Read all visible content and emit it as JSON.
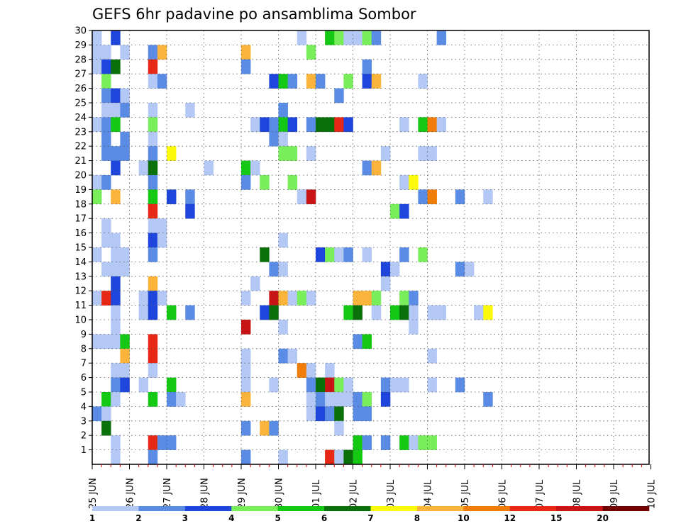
{
  "chart_data": {
    "type": "heatmap",
    "title": "GEFS 6hr padavine po ansamblima Sombor",
    "xlabel": "",
    "ylabel": "",
    "x_ticks": [
      "25 JUN",
      "26 JUN",
      "27 JUN",
      "28 JUN",
      "29 JUN",
      "30 JUN",
      "01 JUL",
      "02 JUL",
      "03 JUL",
      "04 JUL",
      "05 JUL",
      "06 JUL",
      "07 JUL",
      "08 JUL",
      "09 JUL",
      "10 JUL"
    ],
    "y_ticks": [
      "1",
      "2",
      "3",
      "4",
      "5",
      "6",
      "7",
      "8",
      "9",
      "10",
      "11",
      "12",
      "13",
      "14",
      "15",
      "16",
      "17",
      "18",
      "19",
      "20",
      "21",
      "22",
      "23",
      "24",
      "25",
      "26",
      "27",
      "28",
      "29",
      "30"
    ],
    "x_unit": "6-hour step since 25 JUN 00Z",
    "ylim": [
      0,
      30
    ],
    "grid": true,
    "colorbar": {
      "labels": [
        "1",
        "2",
        "3",
        "4",
        "5",
        "6",
        "7",
        "8",
        "10",
        "12",
        "15",
        "20"
      ],
      "colors": [
        "#b4c8f5",
        "#5a8ce6",
        "#1e46dc",
        "#78ee5a",
        "#14c814",
        "#0a700a",
        "#fafa0a",
        "#fab43c",
        "#f07d0a",
        "#e62814",
        "#c81414",
        "#730000"
      ]
    },
    "cells": [
      [
        0,
        30,
        1
      ],
      [
        2,
        30,
        3
      ],
      [
        22,
        30,
        1
      ],
      [
        25,
        30,
        5
      ],
      [
        26,
        30,
        4
      ],
      [
        27,
        30,
        1
      ],
      [
        28,
        30,
        1
      ],
      [
        29,
        30,
        4
      ],
      [
        30,
        30,
        2
      ],
      [
        37,
        30,
        2
      ],
      [
        0,
        29,
        1
      ],
      [
        1,
        29,
        1
      ],
      [
        3,
        29,
        1
      ],
      [
        6,
        29,
        2
      ],
      [
        7,
        29,
        9
      ],
      [
        16,
        29,
        9
      ],
      [
        23,
        29,
        4
      ],
      [
        0,
        28,
        1
      ],
      [
        1,
        28,
        3
      ],
      [
        2,
        28,
        6
      ],
      [
        6,
        28,
        12
      ],
      [
        16,
        28,
        2
      ],
      [
        29,
        28,
        2
      ],
      [
        1,
        27,
        4
      ],
      [
        6,
        27,
        1
      ],
      [
        7,
        27,
        2
      ],
      [
        19,
        27,
        3
      ],
      [
        20,
        27,
        5
      ],
      [
        21,
        27,
        2
      ],
      [
        23,
        27,
        9
      ],
      [
        24,
        27,
        2
      ],
      [
        27,
        27,
        4
      ],
      [
        29,
        27,
        3
      ],
      [
        30,
        27,
        9
      ],
      [
        35,
        27,
        1
      ],
      [
        1,
        26,
        2
      ],
      [
        2,
        26,
        3
      ],
      [
        3,
        26,
        1
      ],
      [
        26,
        26,
        2
      ],
      [
        1,
        25,
        1
      ],
      [
        2,
        25,
        1
      ],
      [
        3,
        25,
        2
      ],
      [
        6,
        25,
        1
      ],
      [
        10,
        25,
        1
      ],
      [
        20,
        25,
        2
      ],
      [
        0,
        24,
        1
      ],
      [
        1,
        24,
        2
      ],
      [
        2,
        24,
        5
      ],
      [
        6,
        24,
        4
      ],
      [
        17,
        24,
        1
      ],
      [
        18,
        24,
        3
      ],
      [
        19,
        24,
        2
      ],
      [
        20,
        24,
        5
      ],
      [
        21,
        24,
        3
      ],
      [
        23,
        24,
        2
      ],
      [
        24,
        24,
        6
      ],
      [
        25,
        24,
        6
      ],
      [
        26,
        24,
        12
      ],
      [
        27,
        24,
        3
      ],
      [
        33,
        24,
        1
      ],
      [
        35,
        24,
        5
      ],
      [
        36,
        24,
        10
      ],
      [
        37,
        24,
        1
      ],
      [
        1,
        23,
        2
      ],
      [
        3,
        23,
        2
      ],
      [
        6,
        23,
        1
      ],
      [
        19,
        23,
        2
      ],
      [
        20,
        23,
        1
      ],
      [
        1,
        22,
        2
      ],
      [
        2,
        22,
        2
      ],
      [
        3,
        22,
        2
      ],
      [
        6,
        22,
        2
      ],
      [
        8,
        22,
        7
      ],
      [
        20,
        22,
        4
      ],
      [
        21,
        22,
        4
      ],
      [
        23,
        22,
        1
      ],
      [
        31,
        22,
        1
      ],
      [
        35,
        22,
        1
      ],
      [
        36,
        22,
        1
      ],
      [
        2,
        21,
        3
      ],
      [
        5,
        21,
        1
      ],
      [
        6,
        21,
        6
      ],
      [
        12,
        21,
        1
      ],
      [
        16,
        21,
        5
      ],
      [
        17,
        21,
        1
      ],
      [
        29,
        21,
        2
      ],
      [
        30,
        21,
        9
      ],
      [
        0,
        20,
        1
      ],
      [
        1,
        20,
        2
      ],
      [
        6,
        20,
        2
      ],
      [
        16,
        20,
        2
      ],
      [
        18,
        20,
        4
      ],
      [
        21,
        20,
        4
      ],
      [
        33,
        20,
        1
      ],
      [
        34,
        20,
        7
      ],
      [
        0,
        19,
        4
      ],
      [
        2,
        19,
        9
      ],
      [
        6,
        19,
        5
      ],
      [
        8,
        19,
        3
      ],
      [
        10,
        19,
        2
      ],
      [
        22,
        19,
        1
      ],
      [
        23,
        19,
        15
      ],
      [
        35,
        19,
        2
      ],
      [
        36,
        19,
        10
      ],
      [
        39,
        19,
        2
      ],
      [
        42,
        19,
        1
      ],
      [
        6,
        18,
        12
      ],
      [
        10,
        18,
        3
      ],
      [
        32,
        18,
        4
      ],
      [
        33,
        18,
        3
      ],
      [
        1,
        17,
        1
      ],
      [
        6,
        17,
        1
      ],
      [
        7,
        17,
        1
      ],
      [
        1,
        16,
        1
      ],
      [
        2,
        16,
        1
      ],
      [
        6,
        16,
        3
      ],
      [
        7,
        16,
        1
      ],
      [
        20,
        16,
        1
      ],
      [
        0,
        15,
        1
      ],
      [
        2,
        15,
        1
      ],
      [
        3,
        15,
        1
      ],
      [
        6,
        15,
        2
      ],
      [
        18,
        15,
        6
      ],
      [
        24,
        15,
        3
      ],
      [
        25,
        15,
        4
      ],
      [
        26,
        15,
        1
      ],
      [
        27,
        15,
        2
      ],
      [
        29,
        15,
        1
      ],
      [
        33,
        15,
        2
      ],
      [
        35,
        15,
        4
      ],
      [
        1,
        14,
        1
      ],
      [
        2,
        14,
        1
      ],
      [
        3,
        14,
        1
      ],
      [
        19,
        14,
        2
      ],
      [
        20,
        14,
        1
      ],
      [
        31,
        14,
        3
      ],
      [
        32,
        14,
        1
      ],
      [
        39,
        14,
        2
      ],
      [
        40,
        14,
        1
      ],
      [
        2,
        13,
        3
      ],
      [
        6,
        13,
        9
      ],
      [
        17,
        13,
        1
      ],
      [
        31,
        13,
        1
      ],
      [
        0,
        12,
        1
      ],
      [
        1,
        12,
        12
      ],
      [
        2,
        12,
        3
      ],
      [
        5,
        12,
        1
      ],
      [
        6,
        12,
        3
      ],
      [
        7,
        12,
        1
      ],
      [
        16,
        12,
        1
      ],
      [
        19,
        12,
        15
      ],
      [
        20,
        12,
        9
      ],
      [
        21,
        12,
        1
      ],
      [
        22,
        12,
        4
      ],
      [
        23,
        12,
        1
      ],
      [
        28,
        12,
        9
      ],
      [
        29,
        12,
        9
      ],
      [
        30,
        12,
        4
      ],
      [
        33,
        12,
        4
      ],
      [
        34,
        12,
        2
      ],
      [
        2,
        11,
        1
      ],
      [
        5,
        11,
        1
      ],
      [
        6,
        11,
        3
      ],
      [
        8,
        11,
        5
      ],
      [
        10,
        11,
        2
      ],
      [
        18,
        11,
        3
      ],
      [
        19,
        11,
        6
      ],
      [
        27,
        11,
        5
      ],
      [
        28,
        11,
        6
      ],
      [
        30,
        11,
        1
      ],
      [
        32,
        11,
        5
      ],
      [
        33,
        11,
        6
      ],
      [
        34,
        11,
        1
      ],
      [
        36,
        11,
        1
      ],
      [
        37,
        11,
        1
      ],
      [
        41,
        11,
        1
      ],
      [
        42,
        11,
        7
      ],
      [
        2,
        10,
        1
      ],
      [
        16,
        10,
        15
      ],
      [
        20,
        10,
        1
      ],
      [
        34,
        10,
        1
      ],
      [
        0,
        9,
        1
      ],
      [
        1,
        9,
        1
      ],
      [
        2,
        9,
        1
      ],
      [
        3,
        9,
        5
      ],
      [
        6,
        9,
        12
      ],
      [
        28,
        9,
        2
      ],
      [
        29,
        9,
        5
      ],
      [
        3,
        8,
        9
      ],
      [
        6,
        8,
        12
      ],
      [
        16,
        8,
        1
      ],
      [
        20,
        8,
        2
      ],
      [
        21,
        8,
        1
      ],
      [
        36,
        8,
        1
      ],
      [
        2,
        7,
        1
      ],
      [
        3,
        7,
        1
      ],
      [
        6,
        7,
        1
      ],
      [
        16,
        7,
        1
      ],
      [
        22,
        7,
        10
      ],
      [
        23,
        7,
        1
      ],
      [
        25,
        7,
        1
      ],
      [
        2,
        6,
        2
      ],
      [
        3,
        6,
        3
      ],
      [
        5,
        6,
        1
      ],
      [
        8,
        6,
        5
      ],
      [
        16,
        6,
        1
      ],
      [
        19,
        6,
        1
      ],
      [
        23,
        6,
        2
      ],
      [
        24,
        6,
        6
      ],
      [
        25,
        6,
        15
      ],
      [
        26,
        6,
        4
      ],
      [
        27,
        6,
        1
      ],
      [
        31,
        6,
        2
      ],
      [
        32,
        6,
        1
      ],
      [
        33,
        6,
        1
      ],
      [
        36,
        6,
        1
      ],
      [
        39,
        6,
        2
      ],
      [
        1,
        5,
        5
      ],
      [
        2,
        5,
        1
      ],
      [
        6,
        5,
        5
      ],
      [
        8,
        5,
        2
      ],
      [
        9,
        5,
        1
      ],
      [
        16,
        5,
        9
      ],
      [
        23,
        5,
        1
      ],
      [
        24,
        5,
        2
      ],
      [
        25,
        5,
        1
      ],
      [
        26,
        5,
        1
      ],
      [
        27,
        5,
        1
      ],
      [
        28,
        5,
        2
      ],
      [
        29,
        5,
        4
      ],
      [
        31,
        5,
        3
      ],
      [
        42,
        5,
        2
      ],
      [
        0,
        4,
        2
      ],
      [
        1,
        4,
        1
      ],
      [
        23,
        4,
        1
      ],
      [
        24,
        4,
        3
      ],
      [
        25,
        4,
        2
      ],
      [
        26,
        4,
        6
      ],
      [
        28,
        4,
        2
      ],
      [
        29,
        4,
        2
      ],
      [
        1,
        3,
        6
      ],
      [
        16,
        3,
        2
      ],
      [
        18,
        3,
        9
      ],
      [
        19,
        3,
        2
      ],
      [
        26,
        3,
        1
      ],
      [
        2,
        2,
        1
      ],
      [
        6,
        2,
        12
      ],
      [
        7,
        2,
        2
      ],
      [
        8,
        2,
        2
      ],
      [
        28,
        2,
        5
      ],
      [
        29,
        2,
        2
      ],
      [
        31,
        2,
        2
      ],
      [
        33,
        2,
        5
      ],
      [
        34,
        2,
        1
      ],
      [
        35,
        2,
        4
      ],
      [
        36,
        2,
        4
      ],
      [
        2,
        1,
        1
      ],
      [
        6,
        1,
        2
      ],
      [
        16,
        1,
        2
      ],
      [
        20,
        1,
        1
      ],
      [
        25,
        1,
        12
      ],
      [
        26,
        1,
        1
      ],
      [
        27,
        1,
        6
      ],
      [
        28,
        1,
        5
      ]
    ]
  }
}
